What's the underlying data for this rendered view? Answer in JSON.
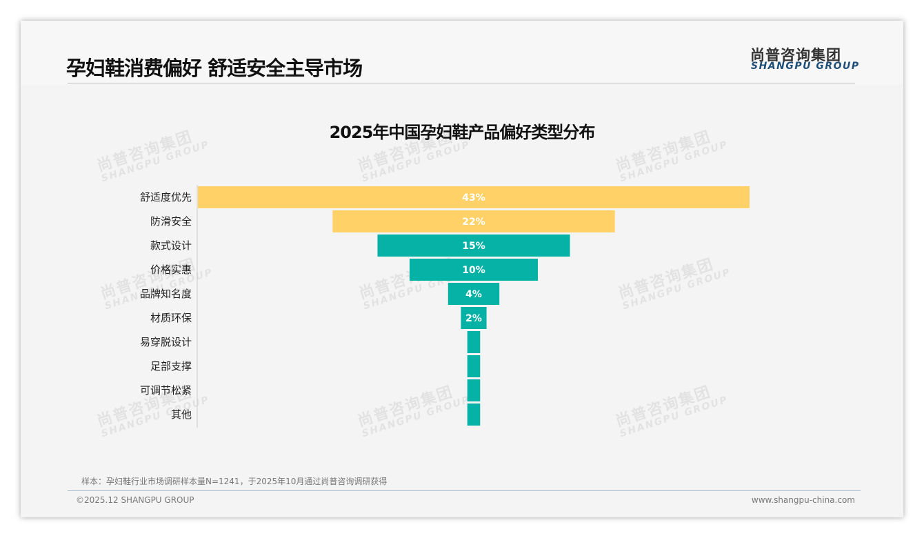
{
  "header": {
    "title": "孕妇鞋消费偏好 舒适安全主导市场",
    "logo_cn": "尚普咨询集团",
    "logo_en": "SHANGPU GROUP"
  },
  "chart_data": {
    "type": "bar",
    "subtype": "funnel",
    "title": "2025年中国孕妇鞋产品偏好类型分布",
    "categories": [
      "舒适度优先",
      "防滑安全",
      "款式设计",
      "价格实惠",
      "品牌知名度",
      "材质环保",
      "易穿脱设计",
      "足部支撑",
      "可调节松紧",
      "其他"
    ],
    "values": [
      43,
      22,
      15,
      10,
      4,
      2,
      1,
      1,
      1,
      1
    ],
    "labels": [
      "43%",
      "22%",
      "15%",
      "10%",
      "4%",
      "2%",
      "",
      "",
      "",
      ""
    ],
    "colors": [
      "#ffd166",
      "#ffd166",
      "#06b1a6",
      "#06b1a6",
      "#06b1a6",
      "#06b1a6",
      "#06b1a6",
      "#06b1a6",
      "#06b1a6",
      "#06b1a6"
    ]
  },
  "watermark": {
    "cn": "尚普咨询集团",
    "en": "SHANGPU GROUP"
  },
  "footer": {
    "note": "样本：孕妇鞋行业市场调研样本量N=1241，于2025年10月通过尚普咨询调研获得",
    "copyright": "©2025.12 SHANGPU GROUP",
    "url": "www.shangpu-china.com"
  }
}
